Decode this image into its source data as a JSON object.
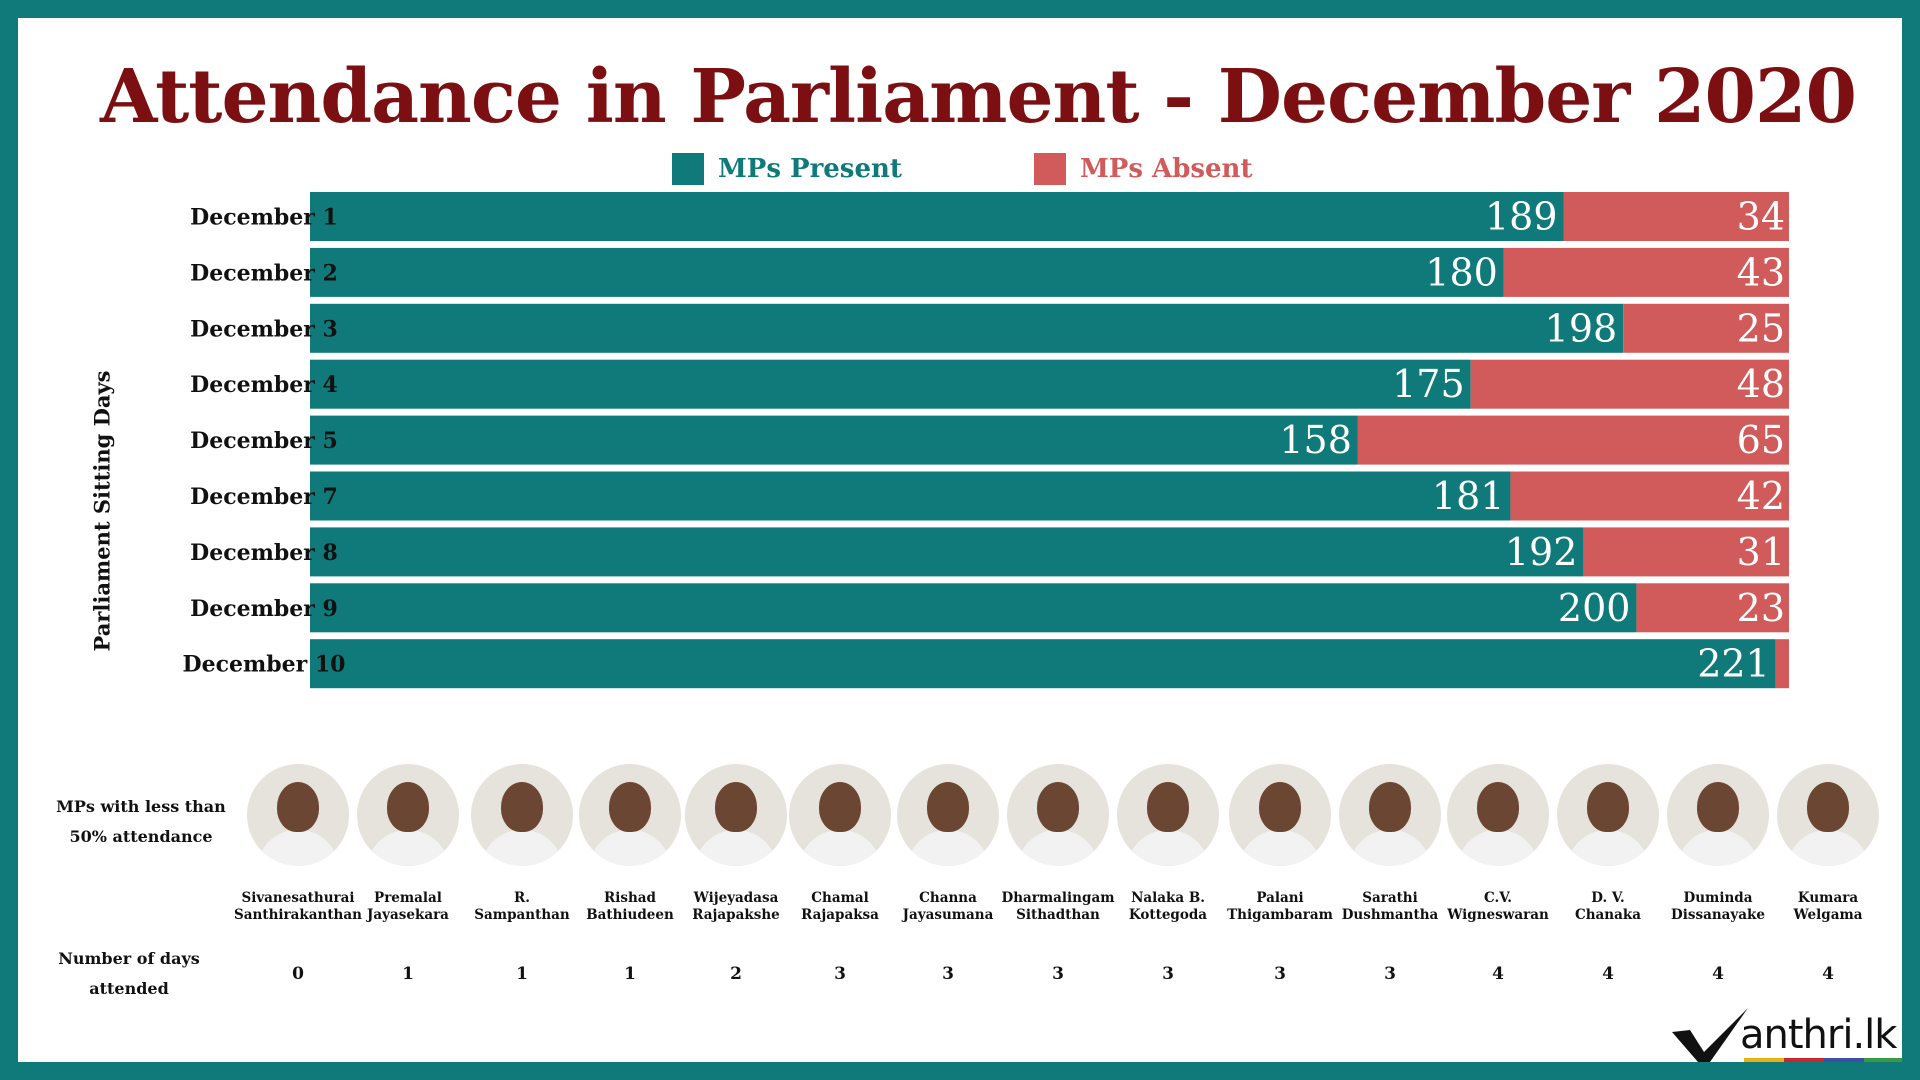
{
  "title": "Attendance in Parliament - December 2020",
  "legend": {
    "present_label": "MPs Present",
    "absent_label": "MPs Absent"
  },
  "colors": {
    "present": "#0f7a79",
    "absent": "#d15b5b",
    "title": "#7b0f12",
    "frame": "#0f7a79"
  },
  "chart_data": {
    "type": "bar",
    "orientation": "horizontal",
    "stacked": true,
    "ylabel": "Parliament  Sitting Days",
    "categories": [
      "December 1",
      "December 2",
      "December 3",
      "December 4",
      "December 5",
      "December 7",
      "December 8",
      "December 9",
      "December 10"
    ],
    "series": [
      {
        "name": "MPs Present",
        "color": "#0f7a79",
        "values": [
          189,
          180,
          198,
          175,
          158,
          181,
          192,
          200,
          221
        ]
      },
      {
        "name": "MPs Absent",
        "color": "#d15b5b",
        "values": [
          34,
          43,
          25,
          48,
          65,
          42,
          31,
          23,
          2
        ]
      }
    ],
    "xlim": [
      0,
      223
    ],
    "grid": true,
    "legend": "top-center"
  },
  "low_attendance": {
    "heading": "MPs with less than 50% attendance",
    "days_heading": "Number of days attended",
    "mps": [
      {
        "name_line1": "Sivanesathurai",
        "name_line2": "Santhirakanthan",
        "days": "0"
      },
      {
        "name_line1": "Premalal",
        "name_line2": "Jayasekara",
        "days": "1"
      },
      {
        "name_line1": "R.",
        "name_line2": "Sampanthan",
        "days": "1"
      },
      {
        "name_line1": "Rishad",
        "name_line2": "Bathiudeen",
        "days": "1"
      },
      {
        "name_line1": "Wijeyadasa",
        "name_line2": "Rajapakshe",
        "days": "2"
      },
      {
        "name_line1": "Chamal",
        "name_line2": "Rajapaksa",
        "days": "3"
      },
      {
        "name_line1": "Channa",
        "name_line2": "Jayasumana",
        "days": "3"
      },
      {
        "name_line1": "Dharmalingam",
        "name_line2": "Sithadthan",
        "days": "3"
      },
      {
        "name_line1": "Nalaka B.",
        "name_line2": "Kottegoda",
        "days": "3"
      },
      {
        "name_line1": "Palani",
        "name_line2": "Thigambaram",
        "days": "3"
      },
      {
        "name_line1": "Sarathi",
        "name_line2": "Dushmantha",
        "days": "3"
      },
      {
        "name_line1": "C.V.",
        "name_line2": "Wigneswaran",
        "days": "4"
      },
      {
        "name_line1": "D. V.",
        "name_line2": "Chanaka",
        "days": "4"
      },
      {
        "name_line1": "Duminda",
        "name_line2": "Dissanayake",
        "days": "4"
      },
      {
        "name_line1": "Kumara",
        "name_line2": "Welgama",
        "days": "4"
      }
    ]
  },
  "logo": {
    "text": "anthri.lk"
  }
}
